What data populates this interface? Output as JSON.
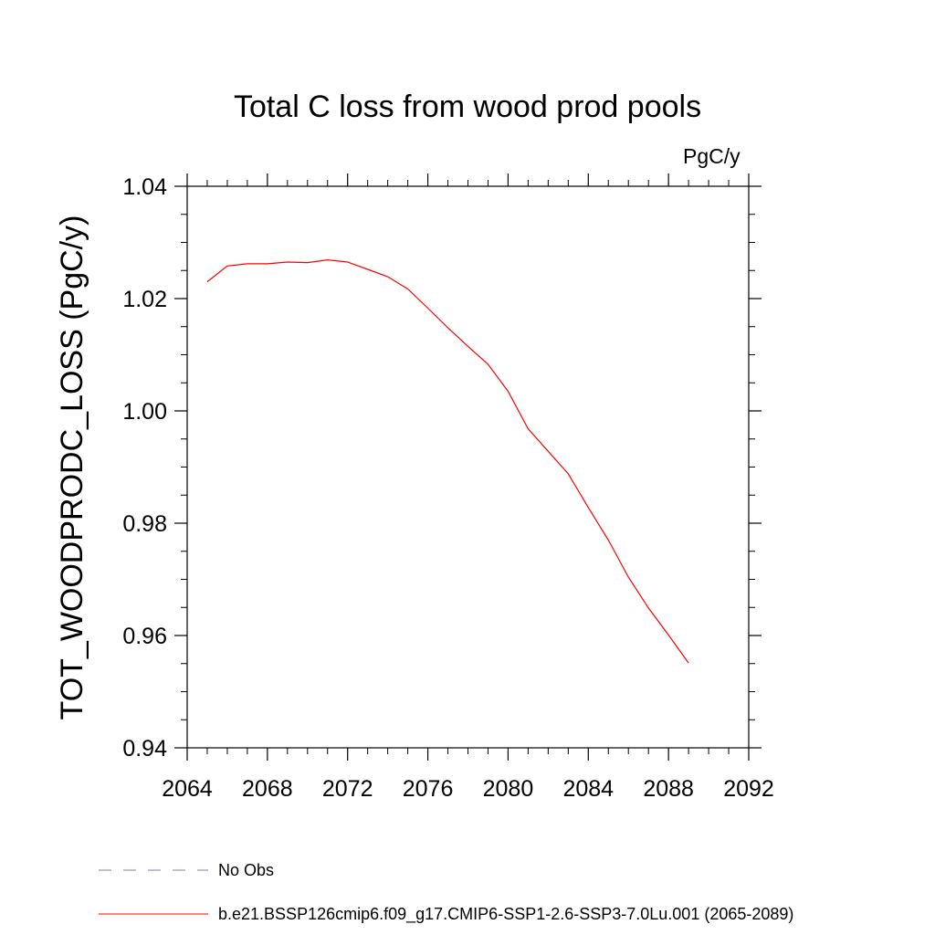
{
  "chart_data": {
    "type": "line",
    "title": "Total C loss from wood prod pools",
    "units": "PgC/y",
    "ylabel": "TOT_WOODPRODC_LOSS  (PgC/y)",
    "xlabel": "",
    "xlim": [
      2064,
      2092
    ],
    "ylim": [
      0.94,
      1.04
    ],
    "x_ticks": [
      2064,
      2068,
      2072,
      2076,
      2080,
      2084,
      2088,
      2092
    ],
    "x_tick_labels": [
      "2064",
      "2068",
      "2072",
      "2076",
      "2080",
      "2084",
      "2088",
      "2092"
    ],
    "y_ticks": [
      0.94,
      0.96,
      0.98,
      1.0,
      1.02,
      1.04
    ],
    "y_tick_labels": [
      "0.94",
      "0.96",
      "0.98",
      "1.00",
      "1.02",
      "1.04"
    ],
    "grid": false,
    "legend_position": "bottom-left",
    "series": [
      {
        "name": "b.e21.BSSP126cmip6.f09_g17.CMIP6-SSP1-2.6-SSP3-7.0Lu.001 (2065-2089)",
        "color": "#ff0000",
        "style": "solid",
        "x": [
          2065,
          2066,
          2067,
          2068,
          2069,
          2070,
          2071,
          2072,
          2073,
          2074,
          2075,
          2076,
          2077,
          2078,
          2079,
          2080,
          2081,
          2082,
          2083,
          2084,
          2085,
          2086,
          2087,
          2088,
          2089
        ],
        "y": [
          1.023,
          1.0258,
          1.0262,
          1.0262,
          1.0265,
          1.0264,
          1.0269,
          1.0265,
          1.0252,
          1.0239,
          1.0217,
          1.0183,
          1.0148,
          1.0115,
          1.0083,
          1.0035,
          0.9968,
          0.9928,
          0.9888,
          0.9828,
          0.977,
          0.9704,
          0.9649,
          0.9601,
          0.9551
        ]
      }
    ],
    "legend": [
      {
        "label": "No Obs",
        "color": "#8877bb",
        "style": "dashed"
      },
      {
        "label": "b.e21.BSSP126cmip6.f09_g17.CMIP6-SSP1-2.6-SSP3-7.0Lu.001 (2065-2089)",
        "color": "#ff0000",
        "style": "solid"
      }
    ]
  }
}
